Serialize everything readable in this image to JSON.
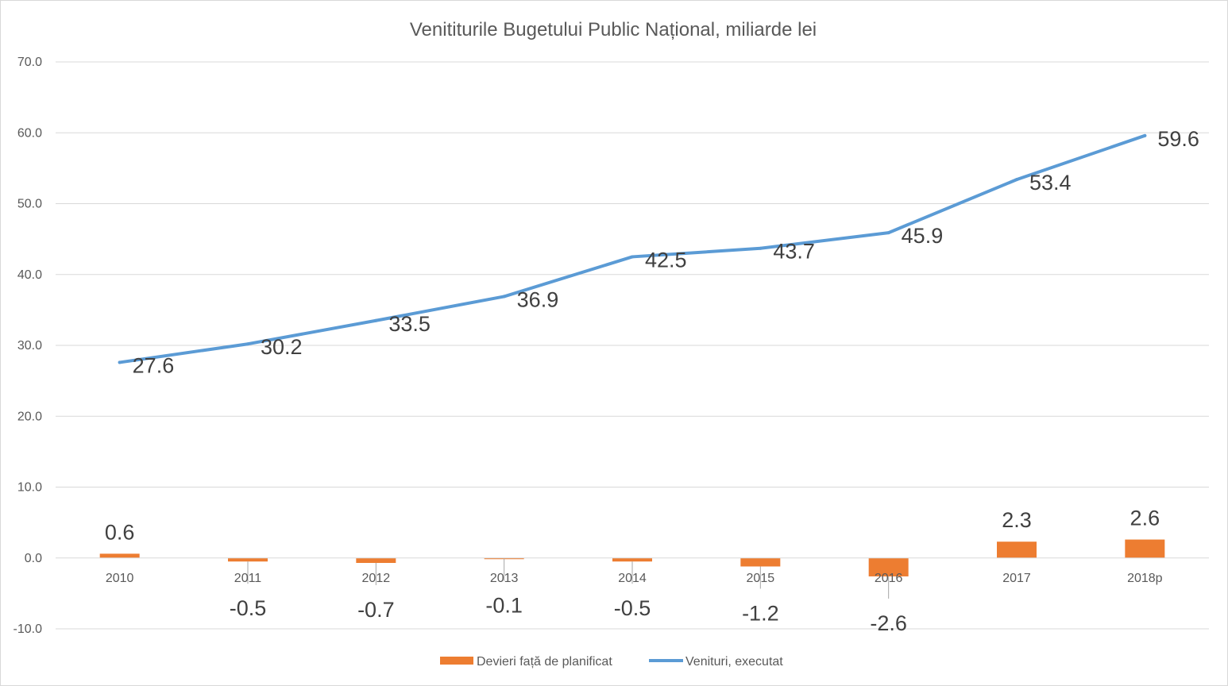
{
  "chart_data": {
    "type": "bar+line",
    "title": "Venititurile Bugetului Public Național, miliarde lei",
    "categories": [
      "2010",
      "2011",
      "2012",
      "2013",
      "2014",
      "2015",
      "2016",
      "2017",
      "2018p"
    ],
    "ylim": [
      -10,
      70
    ],
    "yticks": [
      "70.0",
      "60.0",
      "50.0",
      "40.0",
      "30.0",
      "20.0",
      "10.0",
      "0.0",
      "-10.0"
    ],
    "ytick_values": [
      70,
      60,
      50,
      40,
      30,
      20,
      10,
      0,
      -10
    ],
    "grid": true,
    "legend_position": "bottom",
    "series": [
      {
        "name": "Devieri față de planificat",
        "kind": "bar",
        "color": "#ed7d31",
        "values": [
          0.6,
          -0.5,
          -0.7,
          -0.1,
          -0.5,
          -1.2,
          -2.6,
          2.3,
          2.6
        ],
        "labels": [
          "0.6",
          "-0.5",
          "-0.7",
          "-0.1",
          "-0.5",
          "-1.2",
          "-2.6",
          "2.3",
          "2.6"
        ]
      },
      {
        "name": "Venituri, executat",
        "kind": "line",
        "color": "#5b9bd5",
        "values": [
          27.6,
          30.2,
          33.5,
          36.9,
          42.5,
          43.7,
          45.9,
          53.4,
          59.6
        ],
        "labels": [
          "27.6",
          "30.2",
          "33.5",
          "36.9",
          "42.5",
          "43.7",
          "45.9",
          "53.4",
          "59.6"
        ]
      }
    ]
  }
}
